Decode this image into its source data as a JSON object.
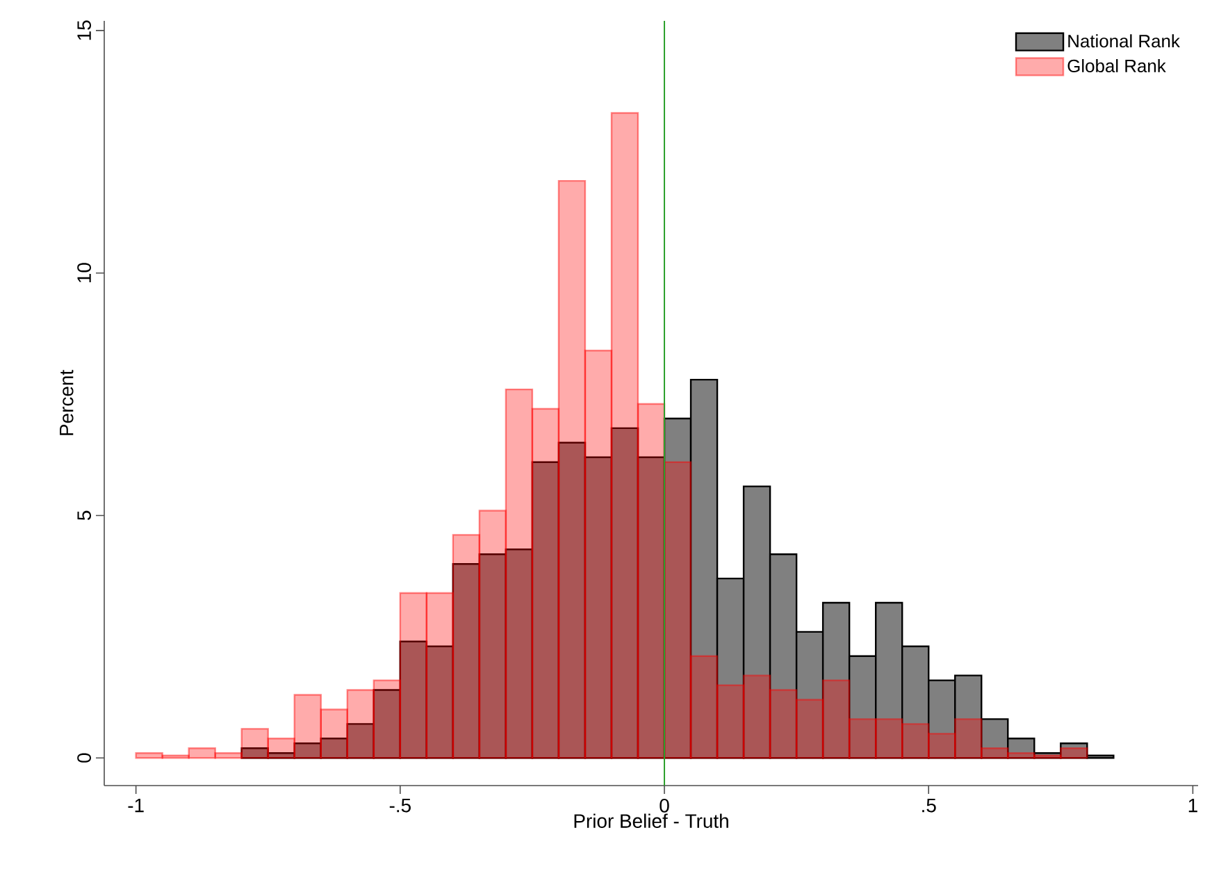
{
  "chart_data": {
    "type": "histogram",
    "xlabel": "Prior Belief - Truth",
    "ylabel": "Percent",
    "bins": [
      -1,
      -0.95,
      -0.9,
      -0.85,
      -0.8,
      -0.75,
      -0.7,
      -0.65,
      -0.6,
      -0.55,
      -0.5,
      -0.45,
      -0.4,
      -0.35,
      -0.3,
      -0.25,
      -0.2,
      -0.15,
      -0.1,
      -0.05,
      0,
      0.05,
      0.1,
      0.15,
      0.2,
      0.25,
      0.3,
      0.35,
      0.4,
      0.45,
      0.5,
      0.55,
      0.6,
      0.65,
      0.7,
      0.75,
      0.8,
      0.85
    ],
    "series": [
      {
        "name": "National Rank",
        "color": "#808080",
        "values": [
          null,
          null,
          null,
          null,
          0.2,
          0.1,
          0.3,
          0.4,
          0.7,
          1.4,
          2.4,
          2.3,
          4.0,
          4.2,
          4.3,
          6.1,
          6.5,
          6.2,
          6.8,
          6.2,
          7.0,
          7.8,
          3.7,
          5.6,
          4.2,
          2.6,
          3.2,
          2.1,
          3.2,
          2.3,
          1.6,
          1.7,
          0.8,
          0.4,
          0.1,
          0.3,
          0.05
        ]
      },
      {
        "name": "Global Rank",
        "color": "#ff0000",
        "values": [
          0.1,
          0.05,
          0.2,
          0.1,
          0.6,
          0.4,
          1.3,
          1.0,
          1.4,
          1.6,
          3.4,
          3.4,
          4.6,
          5.1,
          7.6,
          7.2,
          11.9,
          8.4,
          13.3,
          7.3,
          6.1,
          2.1,
          1.5,
          1.7,
          1.4,
          1.2,
          1.6,
          0.8,
          0.8,
          0.7,
          0.5,
          0.8,
          0.2,
          0.1,
          0.05,
          0.2,
          null
        ]
      }
    ],
    "xlim": [
      -1.06,
      1.01
    ],
    "ylim": [
      -0.57,
      15.2
    ],
    "xticks": [
      {
        "value": -1,
        "label": "-1"
      },
      {
        "value": -0.5,
        "label": "-.5"
      },
      0,
      {
        "value": 0.5,
        "label": ".5"
      },
      1
    ],
    "yticks": [
      0,
      5,
      10,
      15
    ],
    "ref_lines": [
      {
        "axis": "x",
        "value": 0,
        "color": "#2ca02c"
      }
    ],
    "legend": "top right",
    "grid": false
  }
}
